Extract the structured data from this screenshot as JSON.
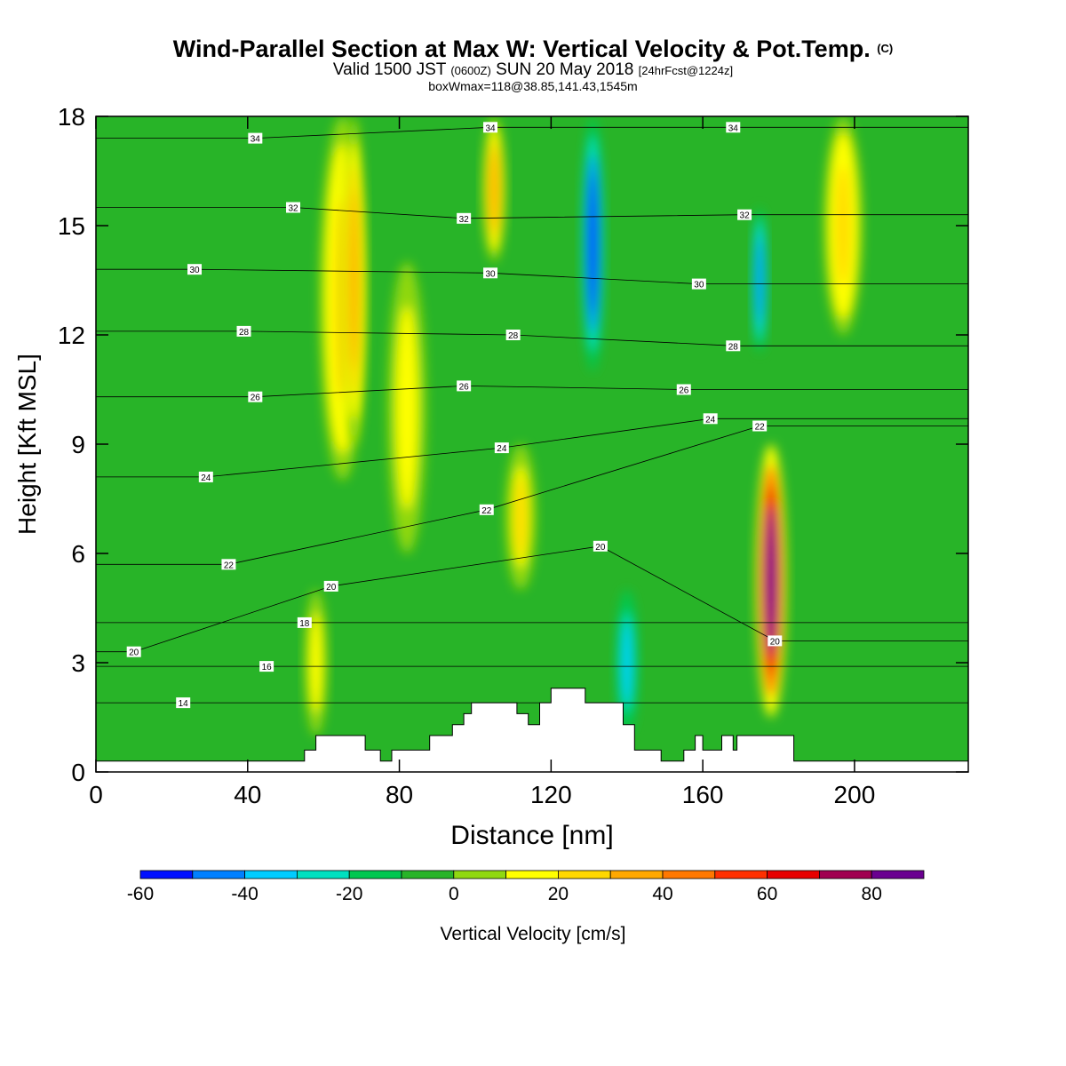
{
  "title": {
    "main": "Wind-Parallel Section at Max W: Vertical Velocity & Pot.Temp.",
    "copyright": "(C)",
    "valid_prefix": "Valid 1500 JST",
    "valid_z": "(0600Z)",
    "valid_date": "SUN 20 May 2018",
    "forecast": "[24hrFcst@1224z]",
    "boxwmax": "boxWmax=118@38.85,141.43,1545m"
  },
  "chart_data": {
    "type": "heatmap",
    "title": "Wind-Parallel Section at Max W: Vertical Velocity & Pot.Temp.",
    "xlabel": "Distance [nm]",
    "ylabel": "Height [Kft MSL]",
    "xlim": [
      0,
      230
    ],
    "ylim": [
      0,
      18
    ],
    "x_ticks": [
      0,
      40,
      80,
      120,
      160,
      200
    ],
    "y_ticks": [
      0,
      3,
      6,
      9,
      12,
      15,
      18
    ],
    "colorbar": {
      "label": "Vertical Velocity [cm/s]",
      "levels": [
        -60,
        -50,
        -40,
        -30,
        -20,
        -10,
        0,
        10,
        20,
        30,
        40,
        50,
        60,
        70,
        80,
        90
      ],
      "tick_labels": [
        -60,
        -40,
        -20,
        0,
        20,
        40,
        60,
        80
      ],
      "colors": [
        "#0010ff",
        "#0080ff",
        "#00ccff",
        "#00e0c0",
        "#00c850",
        "#28b428",
        "#90d810",
        "#ffff00",
        "#ffd800",
        "#ffa800",
        "#ff7800",
        "#ff3000",
        "#e80000",
        "#a00050",
        "#6a0090"
      ]
    },
    "background_value": -5,
    "columns": [
      {
        "x": 65,
        "y0": 8,
        "y1": 18,
        "w": 12,
        "v": 25
      },
      {
        "x": 68,
        "y0": 9,
        "y1": 18,
        "w": 6,
        "v": 32
      },
      {
        "x": 82,
        "y0": 6,
        "y1": 14,
        "w": 10,
        "v": 15
      },
      {
        "x": 105,
        "y0": 14,
        "y1": 18,
        "w": 6,
        "v": 30
      },
      {
        "x": 112,
        "y0": 5,
        "y1": 9,
        "w": 8,
        "v": 22
      },
      {
        "x": 131,
        "y0": 11,
        "y1": 18,
        "w": 6,
        "v": -55
      },
      {
        "x": 175,
        "y0": 11.5,
        "y1": 15.5,
        "w": 4,
        "v": -45
      },
      {
        "x": 197,
        "y0": 12,
        "y1": 18,
        "w": 10,
        "v": 28
      },
      {
        "x": 178,
        "y0": 1.5,
        "y1": 9,
        "w": 8,
        "v": 88
      },
      {
        "x": 58,
        "y0": 1,
        "y1": 5,
        "w": 6,
        "v": 18
      },
      {
        "x": 140,
        "y0": 1,
        "y1": 5,
        "w": 6,
        "v": -35
      }
    ],
    "isentropes": [
      {
        "label": "14",
        "label_x": 23,
        "label_y": 1.9
      },
      {
        "label": "16",
        "label_x": 45,
        "label_y": 2.9
      },
      {
        "label": "18",
        "label_x": 55,
        "label_y": 4.1
      },
      {
        "label": "20",
        "label_x": 62,
        "label_y": 5.1
      },
      {
        "label": "20",
        "label_x": 10,
        "label_y": 3.3
      },
      {
        "label": "20",
        "label_x": 133,
        "label_y": 6.2
      },
      {
        "label": "20",
        "label_x": 179,
        "label_y": 3.6
      },
      {
        "label": "22",
        "label_x": 35,
        "label_y": 5.7
      },
      {
        "label": "22",
        "label_x": 103,
        "label_y": 7.2
      },
      {
        "label": "22",
        "label_x": 175,
        "label_y": 9.5
      },
      {
        "label": "24",
        "label_x": 29,
        "label_y": 8.1
      },
      {
        "label": "24",
        "label_x": 107,
        "label_y": 8.9
      },
      {
        "label": "24",
        "label_x": 162,
        "label_y": 9.7
      },
      {
        "label": "26",
        "label_x": 42,
        "label_y": 10.3
      },
      {
        "label": "26",
        "label_x": 97,
        "label_y": 10.6
      },
      {
        "label": "26",
        "label_x": 155,
        "label_y": 10.5
      },
      {
        "label": "28",
        "label_x": 39,
        "label_y": 12.1
      },
      {
        "label": "28",
        "label_x": 110,
        "label_y": 12.0
      },
      {
        "label": "28",
        "label_x": 168,
        "label_y": 11.7
      },
      {
        "label": "30",
        "label_x": 26,
        "label_y": 13.8
      },
      {
        "label": "30",
        "label_x": 104,
        "label_y": 13.7
      },
      {
        "label": "30",
        "label_x": 159,
        "label_y": 13.4
      },
      {
        "label": "32",
        "label_x": 52,
        "label_y": 15.5
      },
      {
        "label": "32",
        "label_x": 97,
        "label_y": 15.2
      },
      {
        "label": "32",
        "label_x": 171,
        "label_y": 15.3
      },
      {
        "label": "34",
        "label_x": 42,
        "label_y": 17.4
      },
      {
        "label": "34",
        "label_x": 104,
        "label_y": 17.7
      },
      {
        "label": "34",
        "label_x": 168,
        "label_y": 17.7
      }
    ],
    "terrain": [
      [
        0,
        0.3
      ],
      [
        55,
        0.3
      ],
      [
        55,
        0.6
      ],
      [
        58,
        0.6
      ],
      [
        58,
        1.0
      ],
      [
        71,
        1.0
      ],
      [
        71,
        0.6
      ],
      [
        75,
        0.6
      ],
      [
        75,
        0.3
      ],
      [
        78,
        0.3
      ],
      [
        78,
        0.6
      ],
      [
        88,
        0.6
      ],
      [
        88,
        1.0
      ],
      [
        94,
        1.0
      ],
      [
        94,
        1.3
      ],
      [
        97,
        1.3
      ],
      [
        97,
        1.6
      ],
      [
        99,
        1.6
      ],
      [
        99,
        1.9
      ],
      [
        111,
        1.9
      ],
      [
        111,
        1.6
      ],
      [
        114,
        1.6
      ],
      [
        114,
        1.3
      ],
      [
        117,
        1.3
      ],
      [
        117,
        1.9
      ],
      [
        120,
        1.9
      ],
      [
        120,
        2.3
      ],
      [
        129,
        2.3
      ],
      [
        129,
        1.9
      ],
      [
        139,
        1.9
      ],
      [
        139,
        1.3
      ],
      [
        142,
        1.3
      ],
      [
        142,
        0.6
      ],
      [
        149,
        0.6
      ],
      [
        149,
        0.3
      ],
      [
        155,
        0.3
      ],
      [
        155,
        0.6
      ],
      [
        158,
        0.6
      ],
      [
        158,
        1.0
      ],
      [
        160,
        1.0
      ],
      [
        160,
        0.6
      ],
      [
        165,
        0.6
      ],
      [
        165,
        1.0
      ],
      [
        168,
        1.0
      ],
      [
        168,
        0.6
      ],
      [
        169,
        0.6
      ],
      [
        169,
        1.0
      ],
      [
        184,
        1.0
      ],
      [
        184,
        0.3
      ],
      [
        230,
        0.3
      ]
    ]
  }
}
